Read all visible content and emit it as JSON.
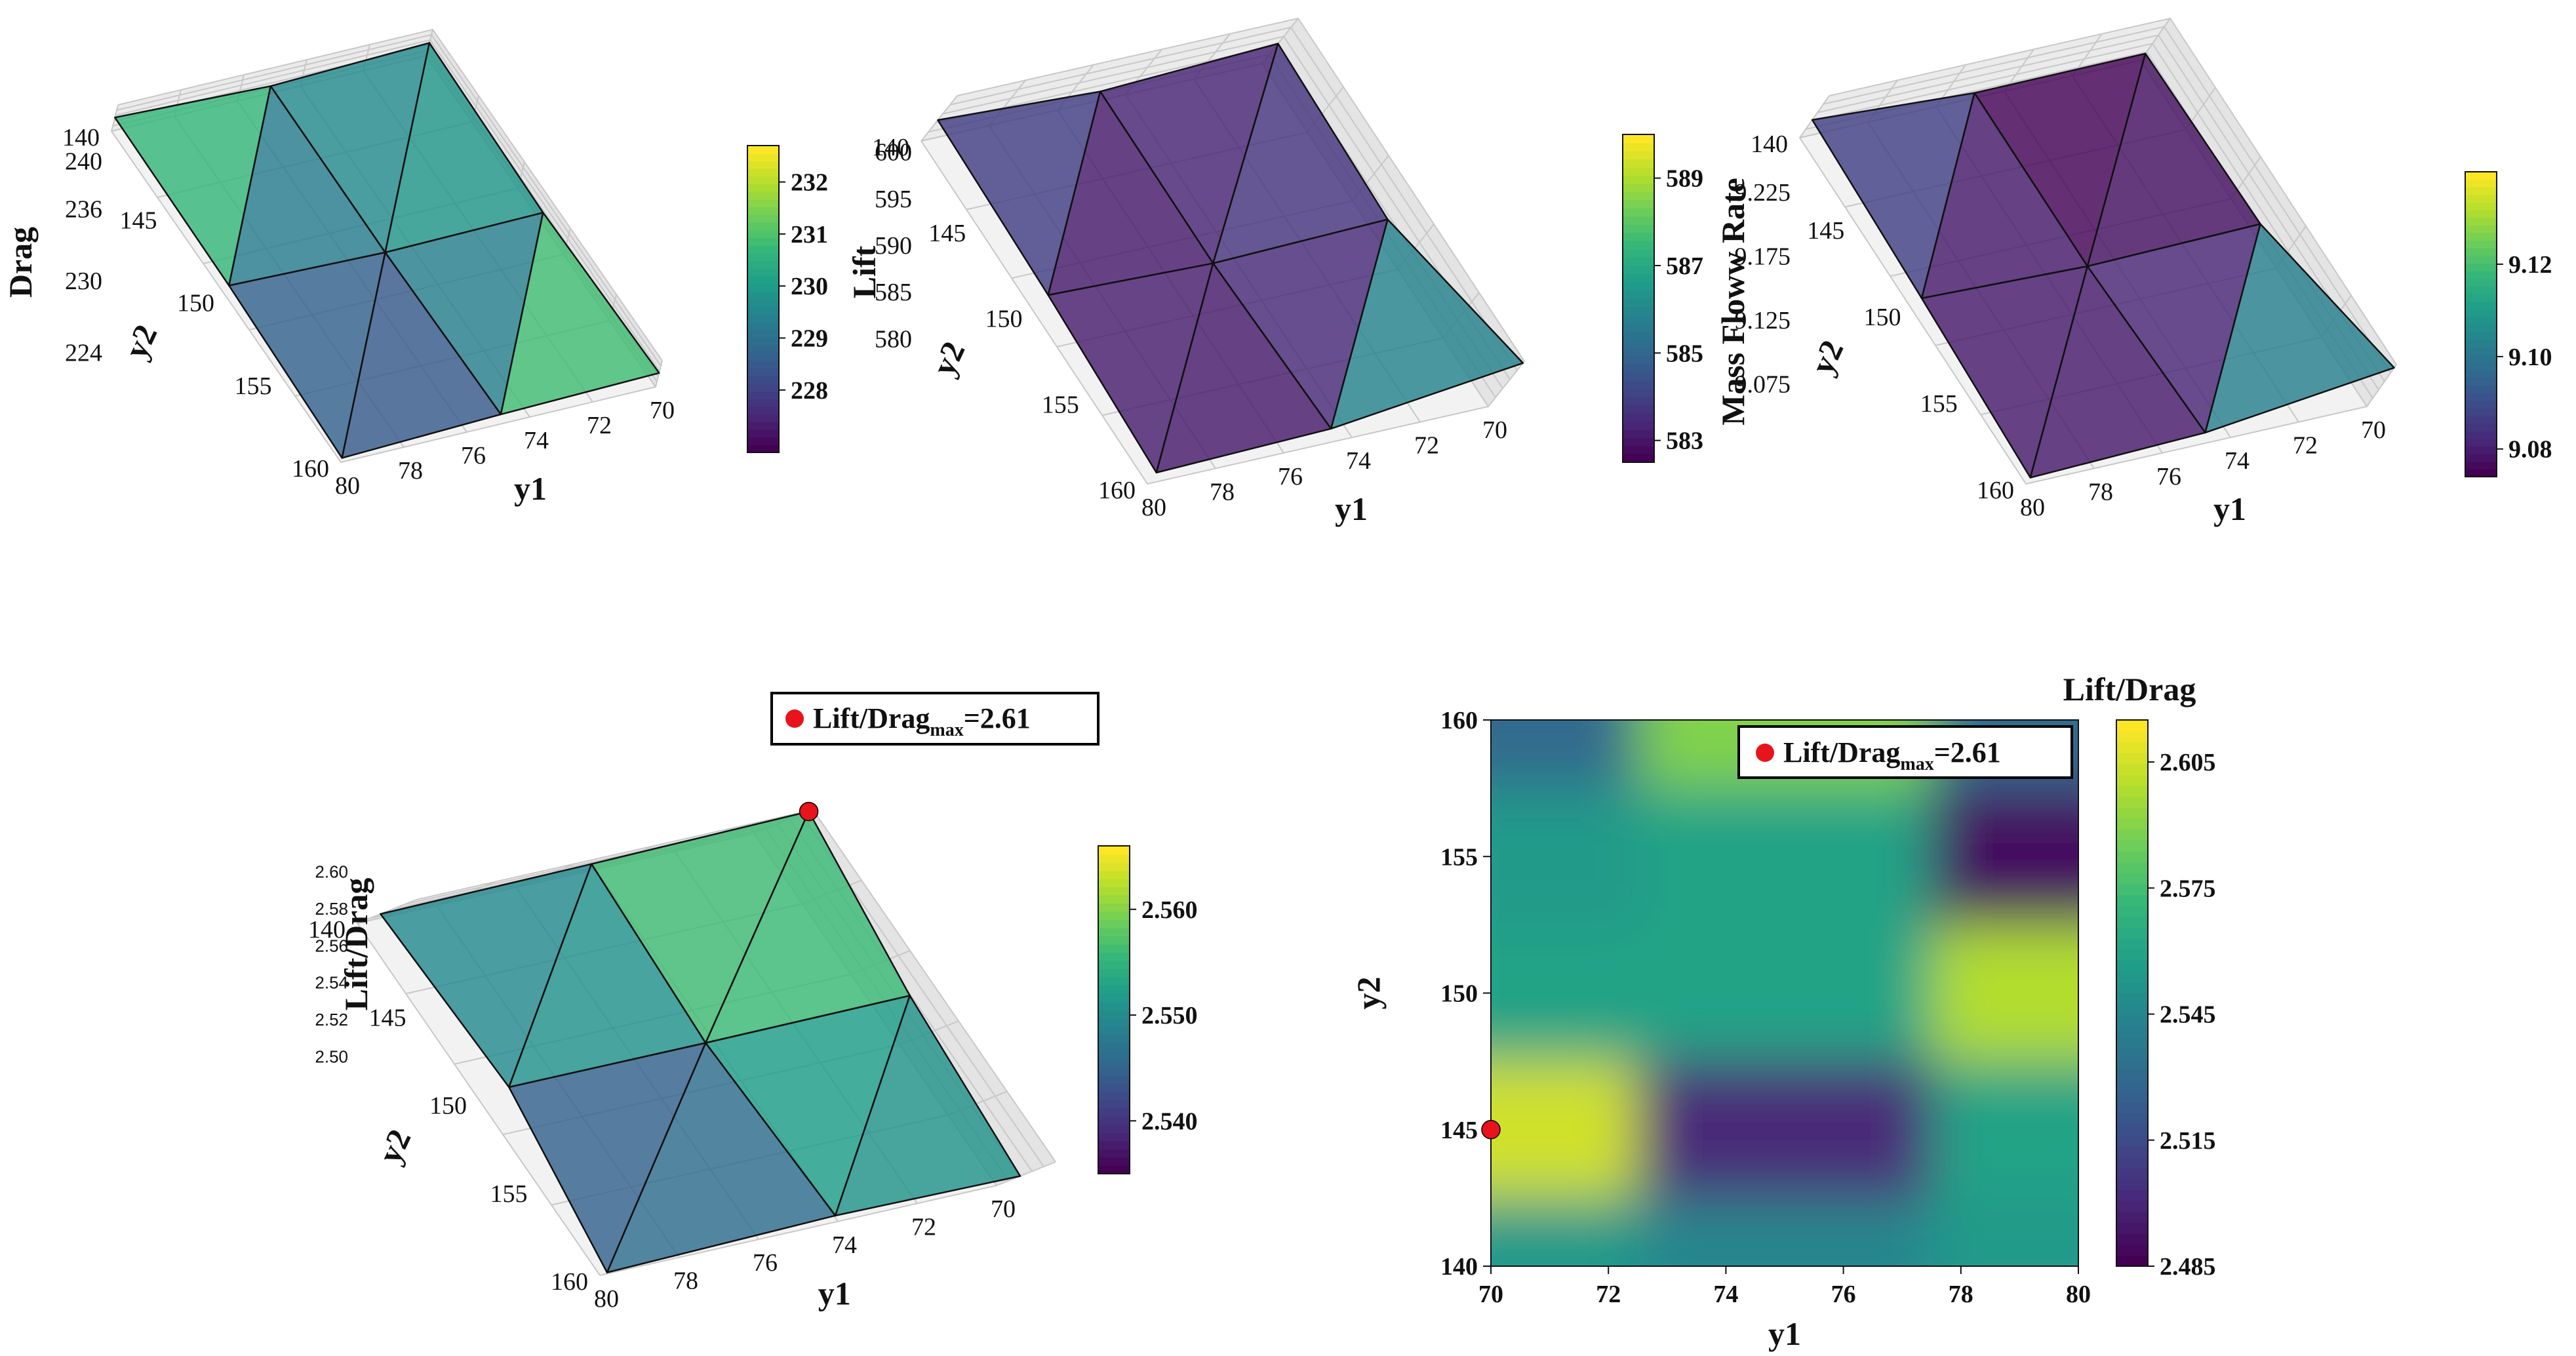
{
  "colors": {
    "viridis": [
      "#440154",
      "#482878",
      "#3e4a89",
      "#31688e",
      "#26828e",
      "#1f9e89",
      "#35b779",
      "#6ece58",
      "#b5de2b",
      "#fde725"
    ],
    "marker": "#e8141b",
    "pane": "#f2f2f2",
    "grid": "#c8c8c8"
  },
  "chart_data": [
    {
      "type": "surface3d",
      "x": [
        70,
        75,
        80
      ],
      "y": [
        140,
        150,
        160
      ],
      "z": [
        [
          231.8,
          227.6,
          232.4
        ],
        [
          228.6,
          227.0,
          230.5
        ],
        [
          232.6,
          229.8,
          225.3
        ]
      ],
      "xlabel": "y1",
      "ylabel": "y2",
      "zlabel": "Drag",
      "xticks": [
        "70",
        "72",
        "74",
        "76",
        "78",
        "80"
      ],
      "yticks": [
        "140",
        "145",
        "150",
        "155",
        "160"
      ],
      "zticks": [
        "224",
        "230",
        "236",
        "240"
      ],
      "zlim": [
        222,
        242
      ],
      "colorbar": {
        "ticks": [
          "228",
          "229",
          "230",
          "231",
          "232"
        ],
        "range": [
          226.8,
          232.7
        ]
      }
    },
    {
      "type": "surface3d",
      "x": [
        70,
        75,
        80
      ],
      "y": [
        140,
        150,
        160
      ],
      "z": [
        [
          588.5,
          583.2,
          589.0
        ],
        [
          586.0,
          583.0,
          587.0
        ],
        [
          602.0,
          586.5,
          583.5
        ]
      ],
      "xlabel": "y1",
      "ylabel": "y2",
      "zlabel": "Lift",
      "xticks": [
        "70",
        "72",
        "74",
        "76",
        "78",
        "80"
      ],
      "yticks": [
        "140",
        "145",
        "150",
        "155",
        "160"
      ],
      "zticks": [
        "580",
        "585",
        "590",
        "595",
        "600"
      ],
      "zlim": [
        577,
        603
      ],
      "colorbar": {
        "ticks": [
          "583",
          "585",
          "587",
          "589"
        ],
        "range": [
          582.5,
          590
        ]
      }
    },
    {
      "type": "surface3d",
      "x": [
        70,
        75,
        80
      ],
      "y": [
        140,
        150,
        160
      ],
      "z": [
        [
          9.082,
          9.079,
          9.135
        ],
        [
          9.095,
          9.078,
          9.11
        ],
        [
          9.235,
          9.11,
          9.08
        ]
      ],
      "xlabel": "y1",
      "ylabel": "y2",
      "zlabel": "Mass Floww Rate",
      "xticks": [
        "70",
        "72",
        "74",
        "76",
        "78",
        "80"
      ],
      "yticks": [
        "140",
        "145",
        "150",
        "155",
        "160"
      ],
      "zticks": [
        "9.075",
        "9.125",
        "9.175",
        "9.225"
      ],
      "zlim": [
        9.05,
        9.25
      ],
      "colorbar": {
        "ticks": [
          "9.08",
          "9.10",
          "9.12"
        ],
        "range": [
          9.074,
          9.14
        ]
      }
    },
    {
      "type": "surface3d",
      "x": [
        70,
        75,
        80
      ],
      "y": [
        140,
        150,
        160
      ],
      "z": [
        [
          2.61,
          2.565,
          2.535
        ],
        [
          2.562,
          2.548,
          2.552
        ],
        [
          2.536,
          2.568,
          2.497
        ]
      ],
      "xlabel": "y1",
      "ylabel": "y2",
      "zlabel": "Lift/Drag",
      "xticks": [
        "70",
        "72",
        "74",
        "76",
        "78",
        "80"
      ],
      "yticks": [
        "140",
        "145",
        "150",
        "155",
        "160"
      ],
      "zticks": [
        "2.50",
        "2.52",
        "2.54",
        "2.56",
        "2.58",
        "2.60"
      ],
      "zlim": [
        2.48,
        2.62
      ],
      "colorbar": {
        "ticks": [
          "2.540",
          "2.550",
          "2.560"
        ],
        "range": [
          2.535,
          2.566
        ]
      },
      "marker": {
        "x": 70,
        "y": 140,
        "z": 2.61
      },
      "legend_label": "Lift/Drag",
      "legend_sub": "max",
      "legend_value": "=2.61"
    },
    {
      "type": "heatmap",
      "x": [
        70,
        75,
        80
      ],
      "y": [
        140,
        145,
        150,
        155,
        160
      ],
      "z": [
        [
          2.555,
          2.545,
          2.555
        ],
        [
          2.606,
          2.5,
          2.56
        ],
        [
          2.56,
          2.56,
          2.6
        ],
        [
          2.555,
          2.56,
          2.49
        ],
        [
          2.53,
          2.59,
          2.53
        ]
      ],
      "xlabel": "y1",
      "ylabel": "y2",
      "xticks": [
        "70",
        "72",
        "74",
        "76",
        "78",
        "80"
      ],
      "yticks": [
        "140",
        "145",
        "150",
        "155",
        "160"
      ],
      "xlim": [
        70,
        80
      ],
      "ylim": [
        140,
        160
      ],
      "colorbar": {
        "title": "Lift/Drag",
        "ticks": [
          "2.485",
          "2.515",
          "2.545",
          "2.575",
          "2.605"
        ],
        "range": [
          2.485,
          2.615
        ]
      },
      "marker": {
        "x": 70,
        "y": 145
      },
      "legend_label": "Lift/Drag",
      "legend_sub": "max",
      "legend_value": "=2.61"
    }
  ]
}
